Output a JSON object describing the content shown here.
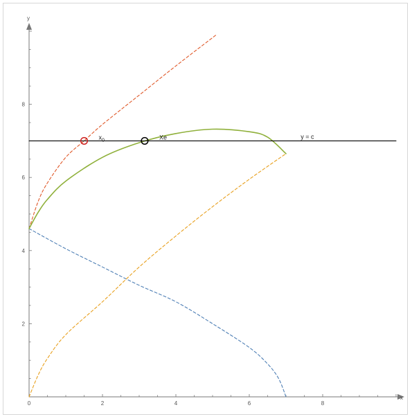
{
  "chart_data": {
    "type": "line",
    "title": "",
    "xlabel": "x",
    "ylabel": "y",
    "xlim": [
      0,
      10
    ],
    "ylim": [
      0,
      10
    ],
    "x_ticks": [
      0,
      2,
      4,
      6,
      8
    ],
    "y_ticks": [
      2,
      4,
      6,
      8
    ],
    "grid": false,
    "series": [
      {
        "style": "dashed",
        "color": "#4e7fb5",
        "points": [
          [
            0,
            4.6
          ],
          [
            1,
            4.05
          ],
          [
            2,
            3.55
          ],
          [
            3,
            3.05
          ],
          [
            4,
            2.6
          ],
          [
            5,
            2.0
          ],
          [
            6,
            1.35
          ],
          [
            6.5,
            0.9
          ],
          [
            6.8,
            0.5
          ],
          [
            7.0,
            0.0
          ]
        ]
      },
      {
        "style": "dashed",
        "color": "#e8a01e",
        "points": [
          [
            0,
            0
          ],
          [
            0.25,
            0.6
          ],
          [
            0.5,
            1.05
          ],
          [
            1,
            1.7
          ],
          [
            2,
            2.6
          ],
          [
            3,
            3.55
          ],
          [
            4,
            4.4
          ],
          [
            5,
            5.2
          ],
          [
            6,
            5.95
          ],
          [
            7.0,
            6.65
          ]
        ]
      },
      {
        "style": "dashed",
        "color": "#e05a2b",
        "points": [
          [
            0,
            4.6
          ],
          [
            0.25,
            5.35
          ],
          [
            0.5,
            5.85
          ],
          [
            1,
            6.55
          ],
          [
            1.5,
            7.0
          ],
          [
            2,
            7.45
          ],
          [
            3,
            8.25
          ],
          [
            4,
            9.05
          ],
          [
            5.1,
            9.9
          ]
        ]
      },
      {
        "style": "solid",
        "color": "#8fb03a",
        "points": [
          [
            0,
            4.6
          ],
          [
            0.25,
            5.05
          ],
          [
            0.5,
            5.4
          ],
          [
            1,
            5.9
          ],
          [
            2,
            6.55
          ],
          [
            3,
            6.95
          ],
          [
            4,
            7.2
          ],
          [
            5,
            7.32
          ],
          [
            6,
            7.25
          ],
          [
            6.5,
            7.1
          ],
          [
            7.0,
            6.65
          ]
        ]
      },
      {
        "style": "solid",
        "color": "#000000",
        "points": [
          [
            0,
            7.0
          ],
          [
            10,
            7.0
          ]
        ]
      }
    ],
    "markers": [
      {
        "x": 1.5,
        "y": 7.0,
        "color": "#cc1f1f",
        "label": "x",
        "sub": "0"
      },
      {
        "x": 3.15,
        "y": 7.0,
        "color": "#000000",
        "label": "Xe",
        "sub": ""
      }
    ],
    "line_label": {
      "text": "y = c",
      "x": 7.4,
      "y": 7.0
    },
    "colors": {
      "axis": "#777777",
      "tick_text": "#555555"
    }
  }
}
